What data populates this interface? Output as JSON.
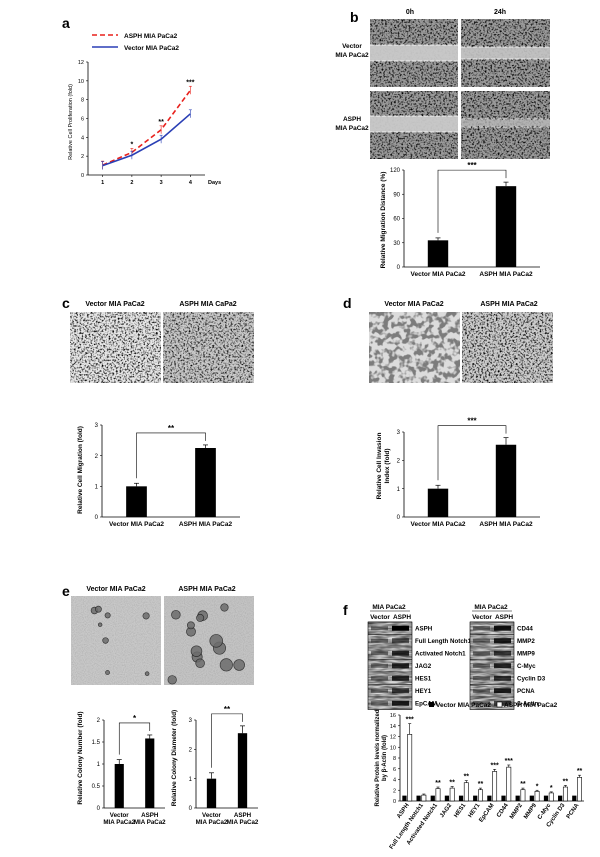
{
  "panels": {
    "a": {
      "letter": "a",
      "legend": [
        "ASPH MIA PaCa2",
        "Vector MIA PaCa2"
      ],
      "ylabel": "Relative Cell Proliferation (fold)",
      "xunit": "Days",
      "yticks": [
        "0",
        "2",
        "4",
        "6",
        "8",
        "10",
        "12"
      ],
      "xticks": [
        "1",
        "2",
        "3",
        "4"
      ],
      "sig": [
        "*",
        "**",
        "***"
      ]
    },
    "b": {
      "letter": "b",
      "col_headers": [
        "0h",
        "24h"
      ],
      "row_labels": [
        [
          "Vector",
          "MIA PaCa2"
        ],
        [
          "ASPH",
          "MIA PaCa2"
        ]
      ],
      "ylabel": "Relative Migration Distance (%)",
      "yticks": [
        "0",
        "30",
        "60",
        "90",
        "120"
      ],
      "categories": [
        "Vector MIA PaCa2",
        "ASPH MIA PaCa2"
      ],
      "sig": "***"
    },
    "c": {
      "letter": "c",
      "image_titles": [
        "Vector MIA PaCa2",
        "ASPH MIA CaPa2"
      ],
      "ylabel": "Relative Cell Migration (fold)",
      "yticks": [
        "0",
        "1",
        "2",
        "3"
      ],
      "categories": [
        "Vector MIA PaCa2",
        "ASPH MIA PaCa2"
      ],
      "sig": "**"
    },
    "d": {
      "letter": "d",
      "image_titles": [
        "Vector MIA PaCa2",
        "ASPH MIA PaCa2"
      ],
      "ylabel": [
        "Relative Cell Invasion",
        "Index (fold)"
      ],
      "yticks": [
        "0",
        "1",
        "2",
        "3"
      ],
      "categories": [
        "Vector MIA PaCa2",
        "ASPH MIA PaCa2"
      ],
      "sig": "***"
    },
    "e": {
      "letter": "e",
      "image_titles": [
        "Vector MIA PaCa2",
        "ASPH MIA PaCa2"
      ],
      "ylabel_left": "Relative Colony Number (fold)",
      "ylabel_right": "Relative Colony Diameter (fold)",
      "yticks_left": [
        "0",
        "0.5",
        "1",
        "1.5",
        "2"
      ],
      "yticks_right": [
        "0",
        "1",
        "2",
        "3"
      ],
      "categories": [
        [
          "Vector",
          "MIA PaCa2"
        ],
        [
          "ASPH",
          "MIA PaCa2"
        ]
      ],
      "sig_left": "*",
      "sig_right": "**"
    },
    "f": {
      "letter": "f",
      "blot_header": "MIA PaCa2",
      "lane_labels": [
        "Vector",
        "ASPH"
      ],
      "blot_left_proteins": [
        "ASPH",
        "Full Length Notch1",
        "Activated Notch1",
        "JAG2",
        "HES1",
        "HEY1",
        "EpCAM"
      ],
      "blot_right_proteins": [
        "CD44",
        "MMP2",
        "MMP9",
        "C-Myc",
        "Cyclin D3",
        "PCNA",
        "β-Actin"
      ],
      "legend": [
        "Vector MIA PaCa2",
        "ASPH MIA PaCa2"
      ],
      "ylabel": [
        "Relative Protein levels normalized",
        "by β-Actin (fold)"
      ],
      "yticks": [
        "0",
        "2",
        "4",
        "6",
        "8",
        "10",
        "12",
        "14",
        "16"
      ]
    }
  },
  "chart_data": [
    {
      "panel": "a",
      "type": "line",
      "x": [
        1,
        2,
        3,
        4
      ],
      "xlabel": "Days",
      "ylabel": "Relative Cell Proliferation (fold)",
      "ylim": [
        0,
        12
      ],
      "series": [
        {
          "name": "ASPH MIA PaCa2",
          "values": [
            1.05,
            2.4,
            4.8,
            9.0
          ],
          "color": "#e8211c",
          "style": "dashed"
        },
        {
          "name": "Vector MIA PaCa2",
          "values": [
            1.0,
            2.1,
            3.8,
            6.5
          ],
          "color": "#2a3fb5",
          "style": "solid"
        }
      ],
      "annotations": [
        "*",
        "**",
        "***"
      ],
      "grid": false
    },
    {
      "panel": "b",
      "type": "bar",
      "categories": [
        "Vector MIA PaCa2",
        "ASPH MIA PaCa2"
      ],
      "values": [
        33,
        100
      ],
      "errors": [
        3,
        5
      ],
      "ylabel": "Relative Migration Distance (%)",
      "ylim": [
        0,
        120
      ],
      "annotations": [
        "***"
      ]
    },
    {
      "panel": "c",
      "type": "bar",
      "categories": [
        "Vector MIA PaCa2",
        "ASPH MIA PaCa2"
      ],
      "values": [
        1.0,
        2.25
      ],
      "errors": [
        0.1,
        0.1
      ],
      "ylabel": "Relative Cell Migration (fold)",
      "ylim": [
        0,
        3
      ],
      "annotations": [
        "**"
      ]
    },
    {
      "panel": "d",
      "type": "bar",
      "categories": [
        "Vector MIA PaCa2",
        "ASPH MIA PaCa2"
      ],
      "values": [
        1.0,
        2.55
      ],
      "errors": [
        0.12,
        0.25
      ],
      "ylabel": "Relative Cell Invasion Index (fold)",
      "ylim": [
        0,
        3
      ],
      "annotations": [
        "***"
      ]
    },
    {
      "panel": "e-left",
      "type": "bar",
      "categories": [
        "Vector MIA PaCa2",
        "ASPH MIA PaCa2"
      ],
      "values": [
        1.0,
        1.58
      ],
      "errors": [
        0.1,
        0.08
      ],
      "ylabel": "Relative Colony Number (fold)",
      "ylim": [
        0,
        2
      ],
      "annotations": [
        "*"
      ]
    },
    {
      "panel": "e-right",
      "type": "bar",
      "categories": [
        "Vector MIA PaCa2",
        "ASPH MIA PaCa2"
      ],
      "values": [
        1.0,
        2.55
      ],
      "errors": [
        0.2,
        0.25
      ],
      "ylabel": "Relative Colony Diameter (fold)",
      "ylim": [
        0,
        3
      ],
      "annotations": [
        "**"
      ]
    },
    {
      "panel": "f",
      "type": "bar",
      "categories": [
        "ASPH",
        "Full Length Notch1",
        "Activated Notch1",
        "JAG2",
        "HES1",
        "HEY1",
        "EpCAM",
        "CD44",
        "MMP2",
        "MMP9",
        "C-Myc",
        "Cyclin D3",
        "PCNA"
      ],
      "ylabel": "Relative Protein levels normalized by β-Actin (fold)",
      "ylim": [
        0,
        16
      ],
      "series": [
        {
          "name": "Vector MIA PaCa2",
          "values": [
            1,
            1,
            1,
            1,
            1,
            1,
            1,
            1,
            1,
            1,
            1,
            1,
            1
          ],
          "color": "#000000"
        },
        {
          "name": "ASPH MIA PaCa2",
          "values": [
            12.4,
            1.1,
            2.3,
            2.4,
            3.4,
            2.1,
            5.5,
            6.3,
            2.1,
            1.8,
            1.5,
            2.6,
            4.4
          ],
          "color": "#ffffff"
        }
      ],
      "errors_asph": [
        2.0,
        0.2,
        0.3,
        0.3,
        0.4,
        0.3,
        0.4,
        0.4,
        0.3,
        0.2,
        0.2,
        0.3,
        0.4
      ],
      "annotations": [
        "***",
        "",
        "**",
        "**",
        "**",
        "**",
        "***",
        "***",
        "**",
        "*",
        "*",
        "**",
        "**"
      ]
    }
  ]
}
